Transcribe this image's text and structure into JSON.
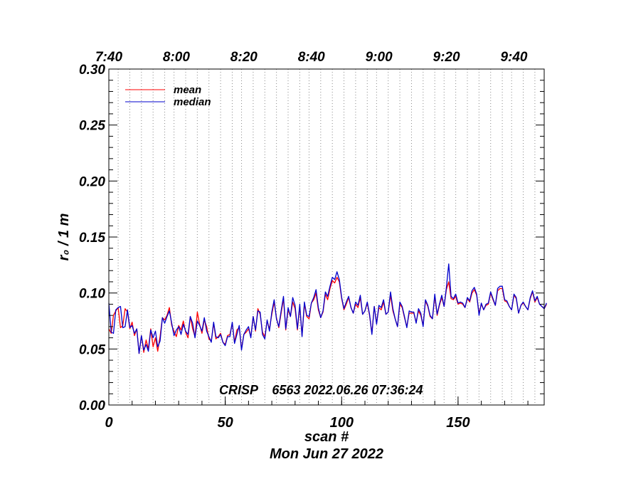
{
  "chart_data": {
    "type": "line",
    "title": "",
    "annotation": "CRISP    6563 2022.06.26 07:36:24",
    "xlabel": "scan #",
    "xlabel2": "Mon Jun 27 2022",
    "ylabel": "r₀ / 1 m",
    "xlim": [
      0,
      187
    ],
    "ylim": [
      0,
      0.3
    ],
    "x_ticks": [
      0,
      50,
      100,
      150
    ],
    "x_tick_labels": [
      "0",
      "50",
      "100",
      "150"
    ],
    "y_ticks": [
      0,
      0.05,
      0.1,
      0.15,
      0.2,
      0.25,
      0.3
    ],
    "y_tick_labels": [
      "0.00",
      "0.05",
      "0.10",
      "0.15",
      "0.20",
      "0.25",
      "0.30"
    ],
    "top_axis": {
      "label_positions_scan": [
        0,
        29,
        58,
        87,
        116,
        145,
        174
      ],
      "labels": [
        "7:40",
        "8:00",
        "8:20",
        "8:40",
        "9:00",
        "9:20",
        "9:40"
      ]
    },
    "dotted_vlines_scan": [
      0,
      4,
      9,
      14,
      19,
      24,
      28,
      33,
      38,
      43,
      48,
      53,
      57,
      62,
      67,
      72,
      77,
      82,
      86,
      91,
      96,
      101,
      106,
      111,
      115,
      120,
      125,
      130,
      135,
      140,
      144,
      149,
      154,
      159,
      164,
      169,
      173,
      178,
      183
    ],
    "legend": [
      "mean",
      "median"
    ],
    "series": [
      {
        "name": "mean",
        "color": "#ff0000",
        "style": "solid",
        "values": [
          0.068,
          0.064,
          0.08,
          0.084,
          0.087,
          0.069,
          0.071,
          0.086,
          0.083,
          0.068,
          0.074,
          0.062,
          0.068,
          0.046,
          0.062,
          0.047,
          0.058,
          0.05,
          0.068,
          0.052,
          0.06,
          0.048,
          0.061,
          0.078,
          0.076,
          0.08,
          0.087,
          0.071,
          0.066,
          0.061,
          0.071,
          0.067,
          0.075,
          0.065,
          0.06,
          0.079,
          0.068,
          0.061,
          0.083,
          0.072,
          0.064,
          0.076,
          0.07,
          0.059,
          0.057,
          0.073,
          0.059,
          0.061,
          0.064,
          0.056,
          0.054,
          0.062,
          0.063,
          0.073,
          0.056,
          0.067,
          0.069,
          0.05,
          0.063,
          0.065,
          0.068,
          0.061,
          0.079,
          0.066,
          0.086,
          0.081,
          0.065,
          0.061,
          0.075,
          0.068,
          0.081,
          0.092,
          0.078,
          0.069,
          0.082,
          0.095,
          0.067,
          0.085,
          0.079,
          0.092,
          0.086,
          0.067,
          0.088,
          0.062,
          0.09,
          0.079,
          0.077,
          0.091,
          0.094,
          0.1,
          0.085,
          0.078,
          0.083,
          0.099,
          0.094,
          0.104,
          0.111,
          0.109,
          0.114,
          0.11,
          0.095,
          0.085,
          0.09,
          0.096,
          0.087,
          0.082,
          0.09,
          0.087,
          0.096,
          0.081,
          0.084,
          0.091,
          0.08,
          0.064,
          0.088,
          0.073,
          0.087,
          0.085,
          0.092,
          0.081,
          0.083,
          0.098,
          0.084,
          0.077,
          0.07,
          0.09,
          0.087,
          0.078,
          0.07,
          0.082,
          0.082,
          0.082,
          0.074,
          0.084,
          0.08,
          0.071,
          0.093,
          0.088,
          0.079,
          0.077,
          0.097,
          0.08,
          0.089,
          0.096,
          0.088,
          0.103,
          0.11,
          0.095,
          0.094,
          0.097,
          0.09,
          0.091,
          0.09,
          0.087,
          0.095,
          0.092,
          0.1,
          0.103,
          0.098,
          0.082,
          0.09,
          0.085,
          0.089,
          0.09,
          0.1,
          0.094,
          0.089,
          0.102,
          0.104,
          0.104,
          0.093,
          0.092,
          0.088,
          0.085,
          0.098,
          0.095,
          0.082,
          0.089,
          0.091,
          0.088,
          0.085,
          0.095,
          0.101,
          0.092,
          0.096,
          0.09,
          0.088,
          0.086,
          0.09
        ]
      },
      {
        "name": "median",
        "color": "#0000cc",
        "style": "solid",
        "values": [
          0.091,
          0.065,
          0.064,
          0.085,
          0.087,
          0.088,
          0.069,
          0.07,
          0.085,
          0.069,
          0.071,
          0.064,
          0.068,
          0.046,
          0.062,
          0.049,
          0.054,
          0.048,
          0.067,
          0.06,
          0.066,
          0.052,
          0.057,
          0.078,
          0.073,
          0.079,
          0.084,
          0.073,
          0.062,
          0.067,
          0.07,
          0.063,
          0.072,
          0.066,
          0.063,
          0.079,
          0.073,
          0.06,
          0.075,
          0.071,
          0.066,
          0.078,
          0.066,
          0.061,
          0.056,
          0.074,
          0.061,
          0.06,
          0.063,
          0.056,
          0.053,
          0.061,
          0.061,
          0.074,
          0.055,
          0.063,
          0.071,
          0.049,
          0.063,
          0.067,
          0.07,
          0.06,
          0.079,
          0.067,
          0.084,
          0.083,
          0.063,
          0.059,
          0.076,
          0.066,
          0.083,
          0.094,
          0.077,
          0.07,
          0.084,
          0.097,
          0.068,
          0.087,
          0.079,
          0.096,
          0.089,
          0.068,
          0.09,
          0.061,
          0.092,
          0.08,
          0.079,
          0.091,
          0.096,
          0.103,
          0.087,
          0.078,
          0.084,
          0.101,
          0.097,
          0.106,
          0.114,
          0.112,
          0.119,
          0.112,
          0.096,
          0.086,
          0.092,
          0.097,
          0.087,
          0.082,
          0.092,
          0.089,
          0.098,
          0.081,
          0.084,
          0.092,
          0.081,
          0.063,
          0.088,
          0.072,
          0.089,
          0.087,
          0.094,
          0.081,
          0.083,
          0.101,
          0.086,
          0.077,
          0.07,
          0.092,
          0.088,
          0.079,
          0.069,
          0.084,
          0.083,
          0.083,
          0.073,
          0.086,
          0.082,
          0.07,
          0.094,
          0.089,
          0.08,
          0.077,
          0.099,
          0.081,
          0.09,
          0.098,
          0.088,
          0.105,
          0.126,
          0.097,
          0.095,
          0.099,
          0.091,
          0.092,
          0.091,
          0.087,
          0.096,
          0.093,
          0.102,
          0.105,
          0.099,
          0.08,
          0.091,
          0.085,
          0.09,
          0.091,
          0.101,
          0.095,
          0.089,
          0.104,
          0.106,
          0.106,
          0.094,
          0.093,
          0.088,
          0.085,
          0.099,
          0.096,
          0.082,
          0.089,
          0.092,
          0.088,
          0.085,
          0.096,
          0.102,
          0.093,
          0.097,
          0.09,
          0.088,
          0.086,
          0.091
        ]
      }
    ]
  }
}
